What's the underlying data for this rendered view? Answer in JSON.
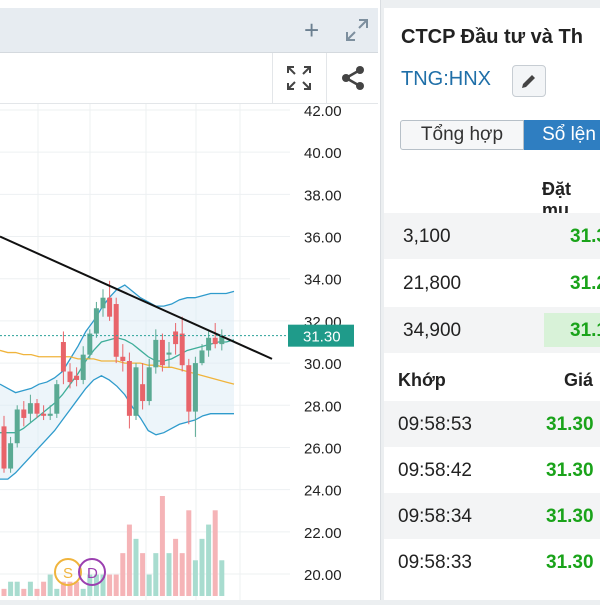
{
  "chart_panel": {
    "add_icon": "plus-icon",
    "expand_icon": "expand-diagonal-icon",
    "fullscreen_icon": "fullscreen-icon",
    "share_icon": "share-icon"
  },
  "chart_data": {
    "type": "candlestick",
    "y_ticks": [
      "42.00",
      "40.00",
      "38.00",
      "36.00",
      "34.00",
      "32.00",
      "30.00",
      "28.00",
      "26.00",
      "24.00",
      "22.00",
      "20.00"
    ],
    "last_price_label": "31.30",
    "last_price": 31.3,
    "ylim": [
      19.5,
      42.5
    ],
    "candles": [
      [
        27.0,
        27.5,
        24.8,
        25.0
      ],
      [
        25.0,
        26.5,
        24.8,
        26.2
      ],
      [
        26.2,
        28.0,
        26.0,
        27.8
      ],
      [
        27.8,
        28.2,
        27.0,
        27.4
      ],
      [
        27.6,
        28.5,
        27.2,
        28.1
      ],
      [
        28.1,
        28.3,
        27.4,
        27.6
      ],
      [
        27.6,
        28.0,
        27.3,
        27.5
      ],
      [
        27.5,
        28.0,
        27.3,
        27.6
      ],
      [
        27.6,
        29.2,
        27.4,
        29.0
      ],
      [
        31.0,
        31.5,
        29.0,
        29.6
      ],
      [
        29.6,
        30.0,
        28.8,
        29.1
      ],
      [
        29.4,
        29.8,
        28.9,
        29.2
      ],
      [
        29.2,
        30.8,
        29.0,
        30.4
      ],
      [
        30.4,
        31.6,
        30.2,
        31.4
      ],
      [
        31.4,
        32.9,
        31.2,
        32.6
      ],
      [
        32.6,
        33.5,
        32.2,
        33.1
      ],
      [
        33.1,
        33.9,
        32.0,
        32.2
      ],
      [
        32.8,
        33.1,
        30.0,
        30.3
      ],
      [
        30.3,
        30.9,
        29.6,
        30.1
      ],
      [
        30.1,
        30.5,
        26.9,
        27.5
      ],
      [
        27.5,
        30.0,
        27.3,
        29.8
      ],
      [
        29.0,
        30.0,
        27.8,
        28.2
      ],
      [
        28.2,
        30.2,
        28.0,
        29.8
      ],
      [
        29.8,
        31.6,
        29.5,
        31.1
      ],
      [
        31.1,
        31.4,
        29.6,
        29.9
      ],
      [
        30.4,
        31.0,
        29.8,
        30.5
      ],
      [
        31.5,
        31.9,
        30.4,
        30.9
      ],
      [
        31.4,
        32.2,
        29.6,
        29.9
      ],
      [
        29.9,
        30.2,
        27.1,
        27.7
      ],
      [
        27.7,
        30.3,
        26.5,
        30.0
      ],
      [
        30.0,
        30.9,
        29.9,
        30.6
      ],
      [
        30.6,
        31.5,
        30.3,
        31.2
      ],
      [
        31.2,
        31.9,
        30.7,
        30.9
      ],
      [
        30.9,
        31.6,
        30.6,
        31.3
      ]
    ],
    "volume": [
      1,
      2,
      2,
      1,
      2,
      1,
      2,
      3,
      1,
      2,
      2,
      2,
      1,
      3,
      3,
      3,
      3,
      3,
      6,
      10,
      8,
      6,
      3,
      6,
      14,
      6,
      8,
      6,
      12,
      5,
      8,
      10,
      12,
      5
    ],
    "trendline": {
      "from": 36.0,
      "to": 30.2
    },
    "bollinger": {
      "upper": [
        29.0,
        28.8,
        28.6,
        28.7,
        28.8,
        29.0,
        29.1,
        29.3,
        29.6,
        30.2,
        30.8,
        31.5,
        32.0,
        32.6,
        33.1,
        33.5,
        33.7,
        33.4,
        33.1,
        32.9,
        32.7,
        32.7,
        32.8,
        33.0,
        33.1,
        33.1,
        33.2,
        33.3,
        33.3,
        33.3,
        33.4
      ],
      "lower": [
        24.5,
        24.5,
        24.8,
        25.2,
        25.6,
        26.0,
        26.4,
        26.8,
        27.3,
        27.8,
        28.3,
        28.8,
        29.2,
        29.4,
        29.2,
        28.9,
        28.5,
        27.9,
        27.4,
        26.8,
        26.6,
        26.7,
        26.9,
        27.1,
        27.2,
        27.3,
        27.5,
        27.6,
        27.6,
        27.6,
        27.6
      ],
      "mid": [
        26.7,
        26.7,
        26.7,
        26.9,
        27.2,
        27.5,
        27.8,
        28.1,
        28.5,
        29.0,
        29.5,
        30.1,
        30.6,
        31.0,
        31.1,
        31.2,
        31.1,
        30.9,
        30.6,
        30.3,
        30.1,
        30.1,
        30.2,
        30.4,
        30.6,
        30.7,
        30.8,
        30.9,
        31.0,
        31.0,
        31.1
      ]
    },
    "ma_orange": [
      30.6,
      30.5,
      30.5,
      30.4,
      30.4,
      30.3,
      30.3,
      30.3,
      30.3,
      30.3,
      30.2,
      30.2,
      30.2,
      30.1,
      30.1,
      30.1,
      30.0,
      30.0,
      30.0,
      29.9,
      29.9,
      29.8,
      29.8,
      29.7,
      29.6,
      29.5,
      29.4,
      29.3,
      29.2,
      29.1,
      29.0
    ],
    "event_markers": [
      "S",
      "D"
    ]
  },
  "company": {
    "title": "CTCP Đầu tư và Th",
    "ticker": "TNG:HNX",
    "edit_icon": "pencil-icon"
  },
  "tabs": [
    "Tổng hợp",
    "Sổ lện"
  ],
  "order_book": {
    "header": "Đặt mu",
    "rows": [
      {
        "volume": "3,100",
        "price": "31.3"
      },
      {
        "volume": "21,800",
        "price": "31.2"
      },
      {
        "volume": "34,900",
        "price": "31.1"
      }
    ]
  },
  "trades": {
    "header_time": "Khớp",
    "header_price": "Giá",
    "rows": [
      {
        "time": "09:58:53",
        "price": "31.30"
      },
      {
        "time": "09:58:42",
        "price": "31.30"
      },
      {
        "time": "09:58:34",
        "price": "31.30"
      },
      {
        "time": "09:58:33",
        "price": "31.30"
      }
    ]
  },
  "colors": {
    "up": "#5aaa93",
    "down": "#e8646a",
    "price_up": "#1aa31a",
    "accent": "#2f7ec1"
  }
}
